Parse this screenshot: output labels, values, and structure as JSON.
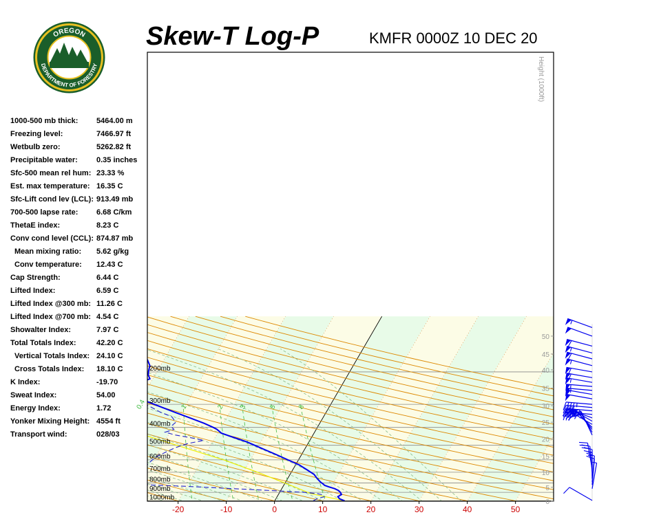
{
  "header": {
    "title": "Skew-T Log-P",
    "subtitle": "KMFR 0000Z 10 DEC 20",
    "logo_text_top": "OREGON",
    "logo_text_bottom": "DEPARTMENT OF FORESTRY"
  },
  "indices": [
    {
      "label": "1000-500 mb thick:",
      "value": "5464.00 m",
      "indent": false
    },
    {
      "label": "Freezing level:",
      "value": "7466.97 ft",
      "indent": false
    },
    {
      "label": "Wetbulb zero:",
      "value": "5262.82 ft",
      "indent": false
    },
    {
      "label": "Precipitable water:",
      "value": "0.35 inches",
      "indent": false
    },
    {
      "label": "Sfc-500 mean rel hum:",
      "value": "23.33 %",
      "indent": false
    },
    {
      "label": "Est. max temperature:",
      "value": "16.35 C",
      "indent": false
    },
    {
      "label": "Sfc-Lift cond lev (LCL):",
      "value": "913.49 mb",
      "indent": false
    },
    {
      "label": "700-500 lapse rate:",
      "value": "6.68 C/km",
      "indent": false
    },
    {
      "label": "ThetaE index:",
      "value": "8.23 C",
      "indent": false
    },
    {
      "label": "Conv cond level (CCL):",
      "value": "874.87 mb",
      "indent": false
    },
    {
      "label": "Mean mixing ratio:",
      "value": "5.62 g/kg",
      "indent": true
    },
    {
      "label": "Conv temperature:",
      "value": "12.43 C",
      "indent": true
    },
    {
      "label": "Cap Strength:",
      "value": "6.44 C",
      "indent": false
    },
    {
      "label": "Lifted Index:",
      "value": "6.59 C",
      "indent": false
    },
    {
      "label": "Lifted Index @300 mb:",
      "value": "11.26 C",
      "indent": false
    },
    {
      "label": "Lifted Index @700 mb:",
      "value": "4.54 C",
      "indent": false
    },
    {
      "label": "Showalter Index:",
      "value": "7.97 C",
      "indent": false
    },
    {
      "label": "Total Totals Index:",
      "value": "42.20 C",
      "indent": false
    },
    {
      "label": "Vertical Totals Index:",
      "value": "24.10 C",
      "indent": true
    },
    {
      "label": "Cross Totals Index:",
      "value": "18.10 C",
      "indent": true
    },
    {
      "label": "K Index:",
      "value": "-19.70",
      "indent": false
    },
    {
      "label": "Sweat Index:",
      "value": "54.00",
      "indent": false
    },
    {
      "label": "Energy Index:",
      "value": "1.72",
      "indent": false
    },
    {
      "label": "Yonker Mixing Height:",
      "value": "4554 ft",
      "indent": false
    },
    {
      "label": "Transport wind:",
      "value": "028/03",
      "indent": false
    }
  ],
  "chart_data": {
    "type": "line",
    "title": "Skew-T Log-P",
    "subtitle": "KMFR 0000Z 10 DEC 20",
    "xlabel": "",
    "ylabel": "",
    "temperature_ticks": [
      -20,
      -10,
      0,
      10,
      20,
      30,
      40,
      50
    ],
    "pressure_levels": [
      {
        "p": 200,
        "label": "200mb"
      },
      {
        "p": 300,
        "label": "300mb"
      },
      {
        "p": 400,
        "label": "400mb"
      },
      {
        "p": 500,
        "label": "500mb"
      },
      {
        "p": 600,
        "label": "600mb"
      },
      {
        "p": 700,
        "label": "700mb"
      },
      {
        "p": 800,
        "label": "800mb"
      },
      {
        "p": 900,
        "label": "900mb"
      },
      {
        "p": 1000,
        "label": "1000mb"
      }
    ],
    "height_axis_title": "Height (1000ft)",
    "height_ticks": [
      {
        "p": 1003,
        "label": "0"
      },
      {
        "p": 845,
        "label": "5"
      },
      {
        "p": 700,
        "label": "10"
      },
      {
        "p": 572,
        "label": "15"
      },
      {
        "p": 463,
        "label": "20"
      },
      {
        "p": 375,
        "label": "25"
      },
      {
        "p": 305,
        "label": "30"
      },
      {
        "p": 245,
        "label": "35"
      },
      {
        "p": 195,
        "label": "40"
      },
      {
        "p": 160,
        "label": "45"
      },
      {
        "p": 128,
        "label": "50"
      }
    ],
    "mixing_ratio_labels": [
      "0.4",
      "1",
      "2",
      "3",
      "5",
      "8"
    ],
    "temperature_profile": [
      {
        "p": 1000,
        "t": 14.5
      },
      {
        "p": 975,
        "t": 13.2
      },
      {
        "p": 950,
        "t": 12.6
      },
      {
        "p": 925,
        "t": 13.1
      },
      {
        "p": 900,
        "t": 12.6
      },
      {
        "p": 880,
        "t": 12.0
      },
      {
        "p": 860,
        "t": 11.0
      },
      {
        "p": 840,
        "t": 9.5
      },
      {
        "p": 825,
        "t": 8.5
      },
      {
        "p": 810,
        "t": 8.0
      },
      {
        "p": 790,
        "t": 7.2
      },
      {
        "p": 760,
        "t": 6.2
      },
      {
        "p": 720,
        "t": 5.0
      },
      {
        "p": 680,
        "t": 3.0
      },
      {
        "p": 640,
        "t": 0.8
      },
      {
        "p": 600,
        "t": -2.2
      },
      {
        "p": 560,
        "t": -5.4
      },
      {
        "p": 520,
        "t": -9.0
      },
      {
        "p": 480,
        "t": -12.8
      },
      {
        "p": 450,
        "t": -16.6
      },
      {
        "p": 430,
        "t": -19.2
      },
      {
        "p": 410,
        "t": -20.6
      },
      {
        "p": 400,
        "t": -21.6
      },
      {
        "p": 380,
        "t": -24.0
      },
      {
        "p": 350,
        "t": -28.4
      },
      {
        "p": 320,
        "t": -33.2
      },
      {
        "p": 290,
        "t": -38.4
      },
      {
        "p": 265,
        "t": -42.6
      },
      {
        "p": 250,
        "t": -44.8
      },
      {
        "p": 242,
        "t": -45.0
      },
      {
        "p": 235,
        "t": -44.0
      },
      {
        "p": 228,
        "t": -42.0
      },
      {
        "p": 218,
        "t": -40.6
      },
      {
        "p": 208,
        "t": -41.4
      },
      {
        "p": 198,
        "t": -41.8
      },
      {
        "p": 185,
        "t": -42.2
      },
      {
        "p": 172,
        "t": -43.4
      },
      {
        "p": 160,
        "t": -45.2
      },
      {
        "p": 150,
        "t": -47.0
      },
      {
        "p": 140,
        "t": -49.0
      },
      {
        "p": 132,
        "t": -51.0
      },
      {
        "p": 124,
        "t": -52.0
      },
      {
        "p": 118,
        "t": -54.5
      },
      {
        "p": 114,
        "t": -56.5
      },
      {
        "p": 110,
        "t": -57.5
      }
    ],
    "dewpoint_profile": [
      {
        "p": 1000,
        "t": 8.0
      },
      {
        "p": 975,
        "t": 8.5
      },
      {
        "p": 950,
        "t": 9.8
      },
      {
        "p": 930,
        "t": 9.3
      },
      {
        "p": 915,
        "t": 8.0
      },
      {
        "p": 900,
        "t": 5.0
      },
      {
        "p": 880,
        "t": -2.0
      },
      {
        "p": 860,
        "t": -10.0
      },
      {
        "p": 845,
        "t": -16.0
      },
      {
        "p": 835,
        "t": -20.0
      },
      {
        "p": 820,
        "t": -28.0
      },
      {
        "p": 800,
        "t": -37.0
      },
      {
        "p": 780,
        "t": -35.0
      },
      {
        "p": 740,
        "t": -32.0
      },
      {
        "p": 700,
        "t": -31.5
      },
      {
        "p": 660,
        "t": -31.0
      },
      {
        "p": 620,
        "t": -30.6
      },
      {
        "p": 580,
        "t": -30.0
      },
      {
        "p": 545,
        "t": -28.5
      },
      {
        "p": 515,
        "t": -27.0
      },
      {
        "p": 490,
        "t": -25.0
      },
      {
        "p": 470,
        "t": -22.0
      },
      {
        "p": 455,
        "t": -25.0
      },
      {
        "p": 440,
        "t": -28.5
      },
      {
        "p": 425,
        "t": -31.0
      },
      {
        "p": 410,
        "t": -29.5
      },
      {
        "p": 395,
        "t": -30.5
      },
      {
        "p": 375,
        "t": -30.0
      },
      {
        "p": 350,
        "t": -31.5
      },
      {
        "p": 330,
        "t": -34.5
      },
      {
        "p": 310,
        "t": -37.0
      },
      {
        "p": 290,
        "t": -40.0
      },
      {
        "p": 270,
        "t": -44.0
      },
      {
        "p": 250,
        "t": -48.0
      },
      {
        "p": 238,
        "t": -53.0
      },
      {
        "p": 225,
        "t": -60.0
      },
      {
        "p": 210,
        "t": -63.0
      },
      {
        "p": 195,
        "t": -65.0
      },
      {
        "p": 180,
        "t": -67.0
      },
      {
        "p": 170,
        "t": -70.0
      },
      {
        "p": 160,
        "t": -70.5
      },
      {
        "p": 150,
        "t": -71.0
      },
      {
        "p": 140,
        "t": -72.0
      },
      {
        "p": 130,
        "t": -73.0
      },
      {
        "p": 120,
        "t": -75.0
      },
      {
        "p": 110,
        "t": -76.0
      }
    ],
    "parcel_profile": [
      {
        "p": 1000,
        "t": 14.5
      },
      {
        "p": 913,
        "t": 6.5
      },
      {
        "p": 850,
        "t": 3.0
      },
      {
        "p": 800,
        "t": -0.1
      },
      {
        "p": 700,
        "t": -7.0
      },
      {
        "p": 600,
        "t": -15.5
      },
      {
        "p": 500,
        "t": -27.0
      },
      {
        "p": 400,
        "t": -41.0
      },
      {
        "p": 300,
        "t": -59.0
      }
    ],
    "wind_barbs_upper": [
      {
        "p": 115,
        "dir": 290,
        "spd": 55
      },
      {
        "p": 128,
        "dir": 290,
        "spd": 50
      },
      {
        "p": 145,
        "dir": 285,
        "spd": 60
      },
      {
        "p": 158,
        "dir": 285,
        "spd": 55
      },
      {
        "p": 170,
        "dir": 285,
        "spd": 60
      },
      {
        "p": 185,
        "dir": 285,
        "spd": 55
      },
      {
        "p": 200,
        "dir": 280,
        "spd": 60
      },
      {
        "p": 215,
        "dir": 280,
        "spd": 60
      },
      {
        "p": 228,
        "dir": 280,
        "spd": 55
      },
      {
        "p": 240,
        "dir": 275,
        "spd": 55
      },
      {
        "p": 252,
        "dir": 275,
        "spd": 55
      },
      {
        "p": 265,
        "dir": 280,
        "spd": 50
      },
      {
        "p": 280,
        "dir": 280,
        "spd": 50
      },
      {
        "p": 300,
        "dir": 275,
        "spd": 45
      },
      {
        "p": 312,
        "dir": 275,
        "spd": 40
      },
      {
        "p": 325,
        "dir": 275,
        "spd": 40
      },
      {
        "p": 340,
        "dir": 275,
        "spd": 35
      },
      {
        "p": 355,
        "dir": 290,
        "spd": 35
      },
      {
        "p": 370,
        "dir": 300,
        "spd": 35
      },
      {
        "p": 385,
        "dir": 300,
        "spd": 35
      },
      {
        "p": 400,
        "dir": 315,
        "spd": 30
      },
      {
        "p": 410,
        "dir": 320,
        "spd": 30
      },
      {
        "p": 425,
        "dir": 330,
        "spd": 30
      },
      {
        "p": 440,
        "dir": 335,
        "spd": 25
      }
    ],
    "wind_barbs_lower": [
      {
        "p": 670,
        "dir": 350,
        "spd": 20
      },
      {
        "p": 700,
        "dir": 355,
        "spd": 20
      },
      {
        "p": 730,
        "dir": 0,
        "spd": 15
      },
      {
        "p": 760,
        "dir": 0,
        "spd": 15
      },
      {
        "p": 790,
        "dir": 5,
        "spd": 10
      },
      {
        "p": 820,
        "dir": 5,
        "spd": 10
      },
      {
        "p": 860,
        "dir": 10,
        "spd": 5
      }
    ],
    "wind_barb_surface": {
      "p": 995,
      "dir": 300,
      "spd": 10
    },
    "colors": {
      "temperature": "#0000ee",
      "dewpoint": "#2020cc",
      "parcel": "#eeee00",
      "dry_adiabat": "#dd8800",
      "moist_adiabat": "#88bb88",
      "mixing_ratio": "#44bb44",
      "isotherm": "#e0a060",
      "pressure_line": "#888888",
      "band_green": "#e8fbe8",
      "band_yellow": "#fcfce6",
      "temp_tick_label": "#cc0000",
      "wind_barb": "#0000ee"
    }
  }
}
